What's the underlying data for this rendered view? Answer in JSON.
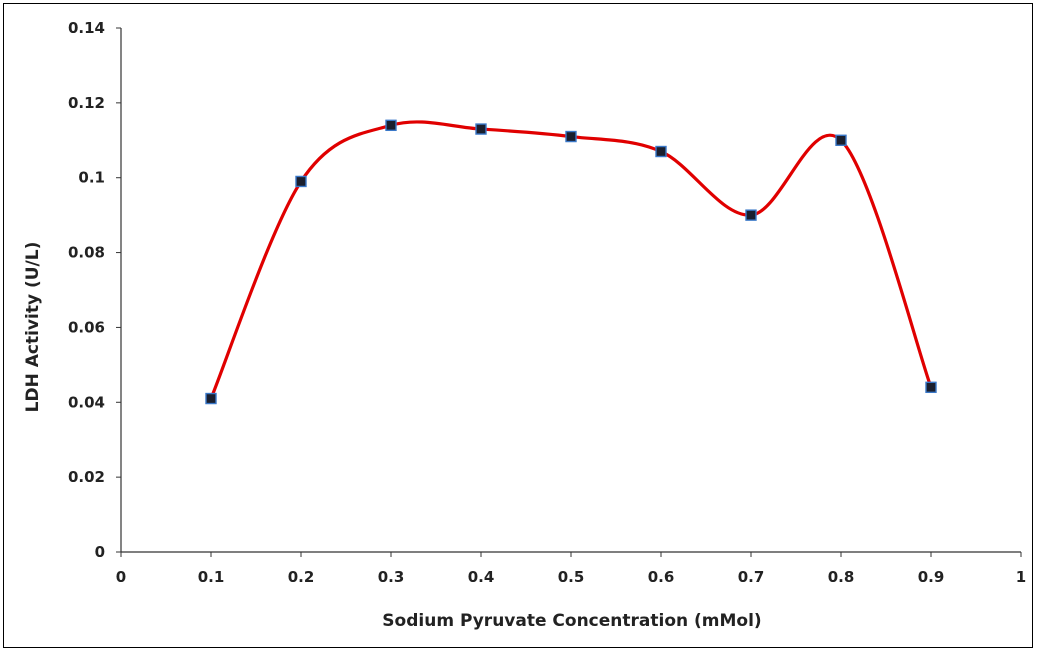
{
  "chart_data": {
    "type": "line",
    "title": "",
    "xlabel": "Sodium Pyruvate Concentration (mMol)",
    "ylabel": "LDH Activity (U/L)",
    "xlim": [
      0,
      1
    ],
    "ylim": [
      0,
      0.14
    ],
    "x_ticks": [
      "0",
      "0.1",
      "0.2",
      "0.3",
      "0.4",
      "0.5",
      "0.6",
      "0.7",
      "0.8",
      "0.9",
      "1"
    ],
    "y_ticks": [
      "0",
      "0.02",
      "0.04",
      "0.06",
      "0.08",
      "0.1",
      "0.12",
      "0.14"
    ],
    "grid": false,
    "smooth": true,
    "series": [
      {
        "x": [
          0.1,
          0.2,
          0.3,
          0.4,
          0.5,
          0.6,
          0.7,
          0.8,
          0.9
        ],
        "y": [
          0.041,
          0.099,
          0.114,
          0.113,
          0.111,
          0.107,
          0.09,
          0.11,
          0.044
        ],
        "line_color": "#e00000",
        "marker_color": "#1a1f2e",
        "marker_edge_color": "#3a78c8"
      }
    ]
  }
}
